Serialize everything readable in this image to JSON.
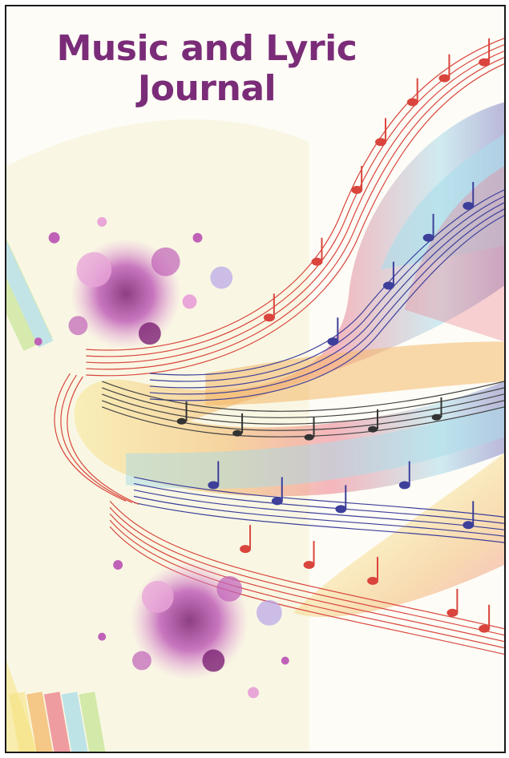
{
  "cover": {
    "title_line1": "Music and Lyric",
    "title_line2": "Journal",
    "title_color": "#7a2c78"
  },
  "artwork": {
    "description_icons": [
      "music-staff-swirl-icon",
      "paint-splatter-icon",
      "rainbow-ribbon-icon"
    ],
    "colors": [
      "#e8536a",
      "#f2a23c",
      "#f7e27a",
      "#8fd3e8",
      "#5b57b0",
      "#c061b8",
      "#7a2c78",
      "#b4df7a"
    ]
  }
}
